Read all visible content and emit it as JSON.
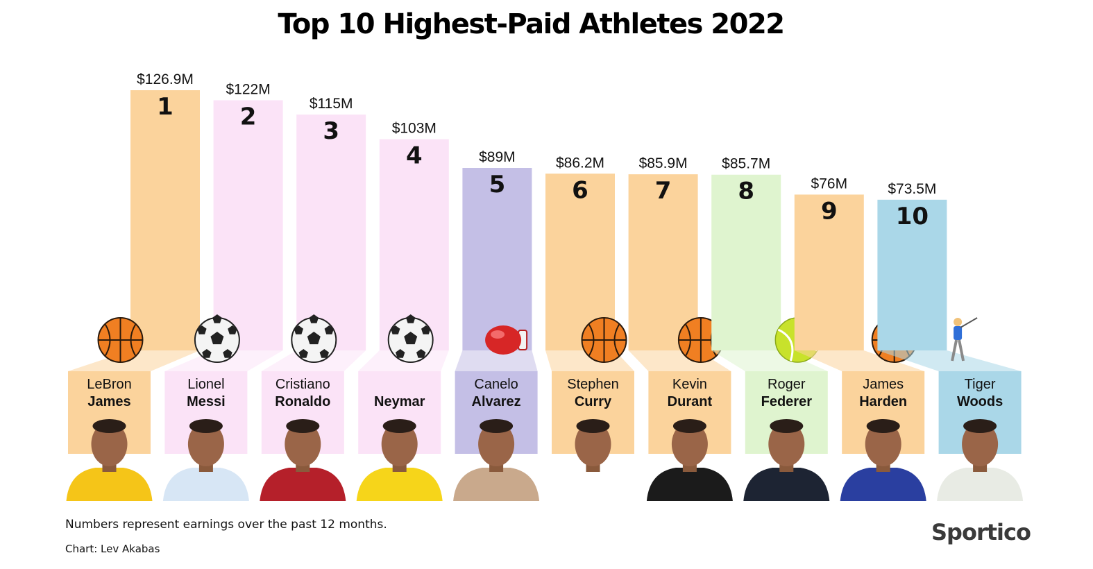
{
  "title": "Top 10 Highest-Paid Athletes 2022",
  "footnote": "Numbers represent earnings over the past 12 months.",
  "credit": "Chart: Lev Akabas",
  "brand": "Sportico",
  "colors": {
    "basketball": "#fbd39c",
    "soccer": "#fbe3f7",
    "boxing": "#c4bfe6",
    "tennis": "#dff4cf",
    "golf": "#aad7e8"
  },
  "chart_data": {
    "type": "bar",
    "title": "Top 10 Highest-Paid Athletes 2022",
    "ylabel": "",
    "xlabel": "",
    "unit": "$M",
    "grid": false,
    "legend": "none",
    "ylim": [
      0,
      126.9
    ],
    "categories": [
      "LeBron James",
      "Lionel Messi",
      "Cristiano Ronaldo",
      "Neymar",
      "Canelo Alvarez",
      "Stephen Curry",
      "Kevin Durant",
      "Roger Federer",
      "James Harden",
      "Tiger Woods"
    ],
    "values": [
      126.9,
      122,
      115,
      103,
      89,
      86.2,
      85.9,
      85.7,
      76,
      73.5
    ],
    "bars": [
      {
        "rank": "1",
        "label": "$126.9M",
        "value": 126.9,
        "first": "LeBron",
        "last": "James",
        "sport": "basketball",
        "icon": "basketball-icon"
      },
      {
        "rank": "2",
        "label": "$122M",
        "value": 122,
        "first": "Lionel",
        "last": "Messi",
        "sport": "soccer",
        "icon": "soccer-ball-icon"
      },
      {
        "rank": "3",
        "label": "$115M",
        "value": 115,
        "first": "Cristiano",
        "last": "Ronaldo",
        "sport": "soccer",
        "icon": "soccer-ball-icon"
      },
      {
        "rank": "4",
        "label": "$103M",
        "value": 103,
        "first": "",
        "last": "Neymar",
        "sport": "soccer",
        "icon": "soccer-ball-icon"
      },
      {
        "rank": "5",
        "label": "$89M",
        "value": 89,
        "first": "Canelo",
        "last": "Alvarez",
        "sport": "boxing",
        "icon": "boxing-glove-icon"
      },
      {
        "rank": "6",
        "label": "$86.2M",
        "value": 86.2,
        "first": "Stephen",
        "last": "Curry",
        "sport": "basketball",
        "icon": "basketball-icon"
      },
      {
        "rank": "7",
        "label": "$85.9M",
        "value": 85.9,
        "first": "Kevin",
        "last": "Durant",
        "sport": "basketball",
        "icon": "basketball-icon"
      },
      {
        "rank": "8",
        "label": "$85.7M",
        "value": 85.7,
        "first": "Roger",
        "last": "Federer",
        "sport": "tennis",
        "icon": "tennis-ball-icon"
      },
      {
        "rank": "9",
        "label": "$76M",
        "value": 76,
        "first": "James",
        "last": "Harden",
        "sport": "basketball",
        "icon": "basketball-icon"
      },
      {
        "rank": "10",
        "label": "$73.5M",
        "value": 73.5,
        "first": "Tiger",
        "last": "Woods",
        "sport": "golf",
        "icon": "golfer-icon"
      }
    ]
  }
}
